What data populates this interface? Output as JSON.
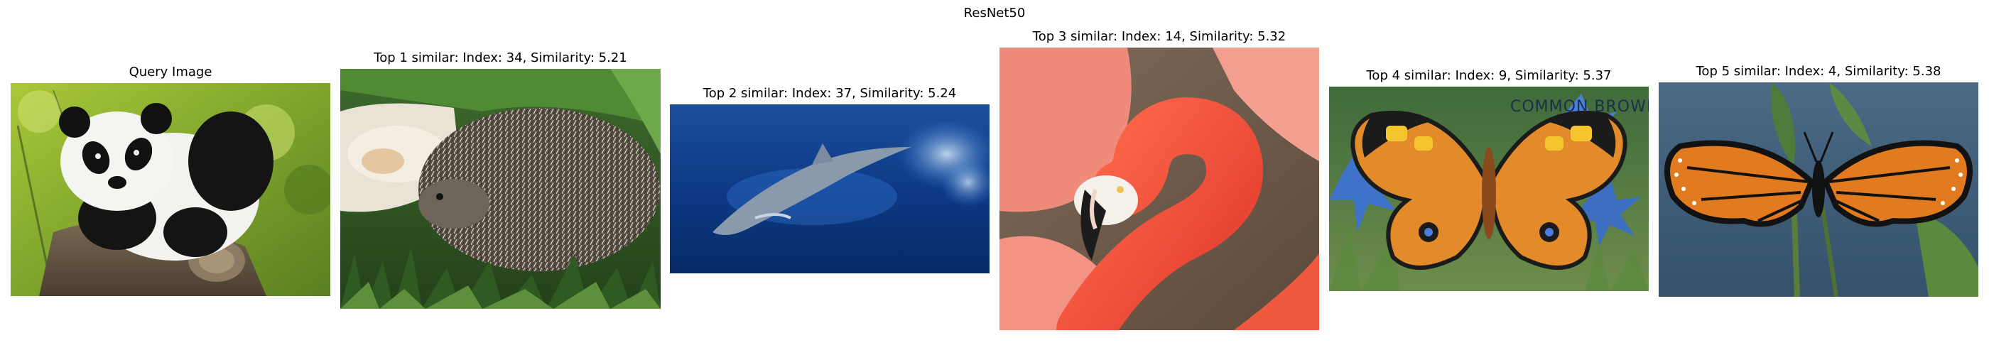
{
  "figure": {
    "suptitle": "ResNet50"
  },
  "panels": [
    {
      "id": "query",
      "title": "Query Image",
      "icon": "panda-photo",
      "role": "query"
    },
    {
      "id": "top1",
      "title": "Top 1 similar: Index: 34, Similarity: 5.21",
      "icon": "hedgehog-photo",
      "role": "result",
      "rank": 1,
      "index": 34,
      "similarity": 5.21
    },
    {
      "id": "top2",
      "title": "Top 2 similar: Index: 37, Similarity: 5.24",
      "icon": "dolphin-photo",
      "role": "result",
      "rank": 2,
      "index": 37,
      "similarity": 5.24
    },
    {
      "id": "top3",
      "title": "Top 3 similar: Index: 14, Similarity: 5.32",
      "icon": "flamingo-photo",
      "role": "result",
      "rank": 3,
      "index": 14,
      "similarity": 5.32
    },
    {
      "id": "top4",
      "title": "Top 4 similar: Index: 9, Similarity: 5.37",
      "icon": "butterfly-illustration",
      "role": "result",
      "rank": 4,
      "index": 9,
      "similarity": 5.37,
      "image_text": "COMMON BROWN"
    },
    {
      "id": "top5",
      "title": "Top 5 similar: Index: 4, Similarity: 5.38",
      "icon": "monarch-butterfly-photo",
      "role": "result",
      "rank": 5,
      "index": 4,
      "similarity": 5.38
    }
  ],
  "colors": {
    "background": "#ffffff",
    "text": "#000000"
  }
}
